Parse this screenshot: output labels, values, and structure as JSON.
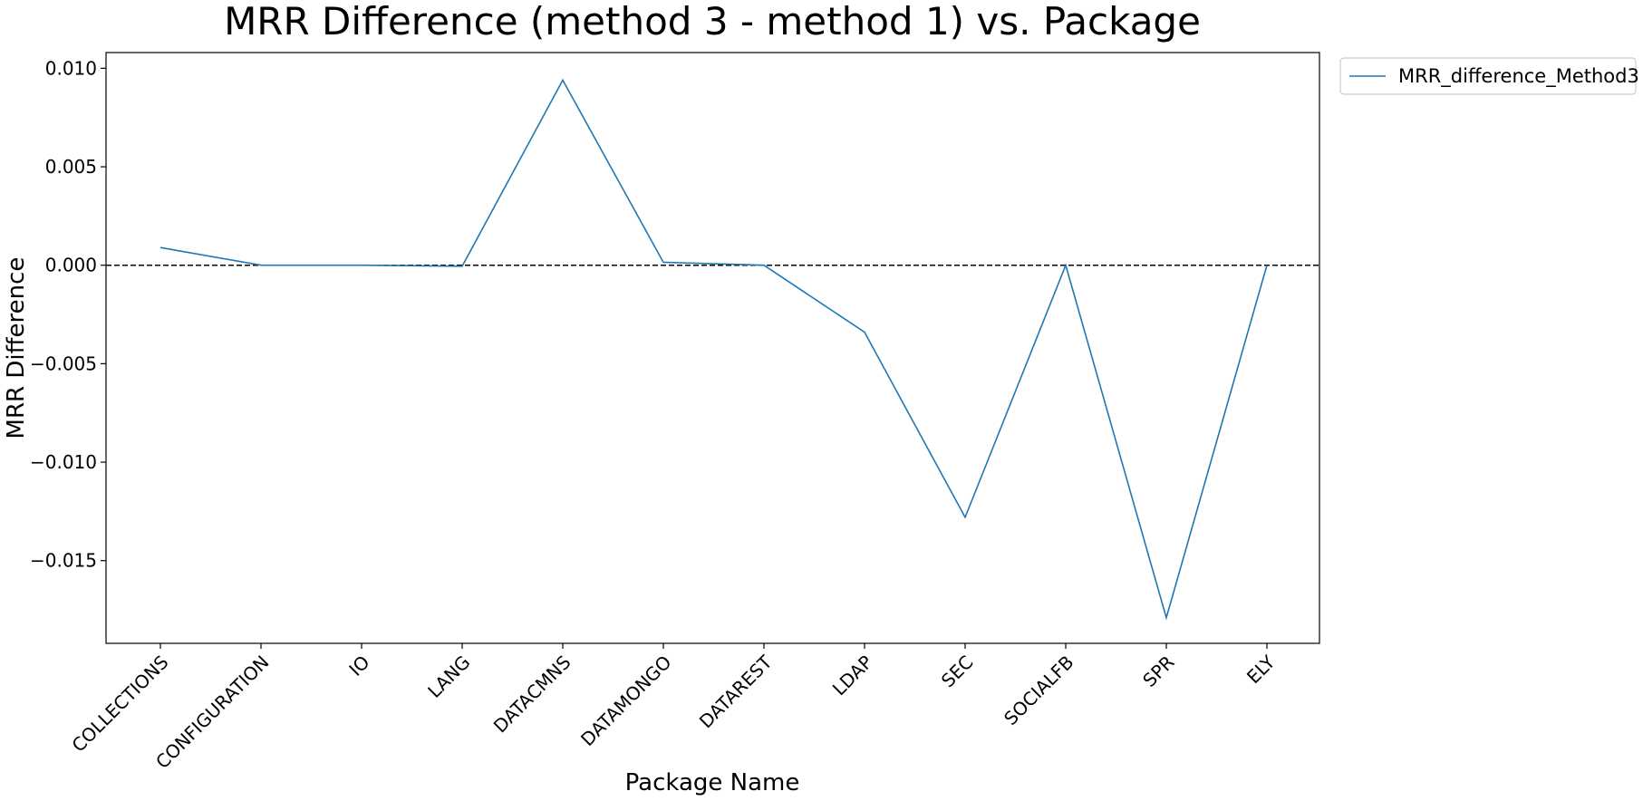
{
  "chart_data": {
    "type": "line",
    "title": "MRR Difference (method 3 - method 1) vs. Package",
    "xlabel": "Package Name",
    "ylabel": "MRR Difference",
    "categories": [
      "COLLECTIONS",
      "CONFIGURATION",
      "IO",
      "LANG",
      "DATACMNS",
      "DATAMONGO",
      "DATAREST",
      "LDAP",
      "SEC",
      "SOCIALFB",
      "SPR",
      "ELY"
    ],
    "series": [
      {
        "name": "MRR_difference_Method3",
        "values": [
          0.0009,
          0.0,
          0.0,
          -5e-05,
          0.0094,
          0.00015,
          0.0,
          -0.0034,
          -0.0128,
          0.0,
          -0.0179,
          0.0
        ]
      }
    ],
    "yticks": [
      0.01,
      0.005,
      0.0,
      -0.005,
      -0.01,
      -0.015
    ],
    "ytick_labels": [
      "0.010",
      "0.005",
      "0.000",
      "−0.005",
      "−0.010",
      "−0.015"
    ],
    "ylim": [
      -0.0192,
      0.0108
    ],
    "reference_line": {
      "y": 0.0,
      "style": "dashed",
      "color": "#000000"
    },
    "legend_position": "outside-top-right",
    "grid": false,
    "colors": {
      "series": "#1f77b4",
      "axes": "#000000"
    }
  }
}
